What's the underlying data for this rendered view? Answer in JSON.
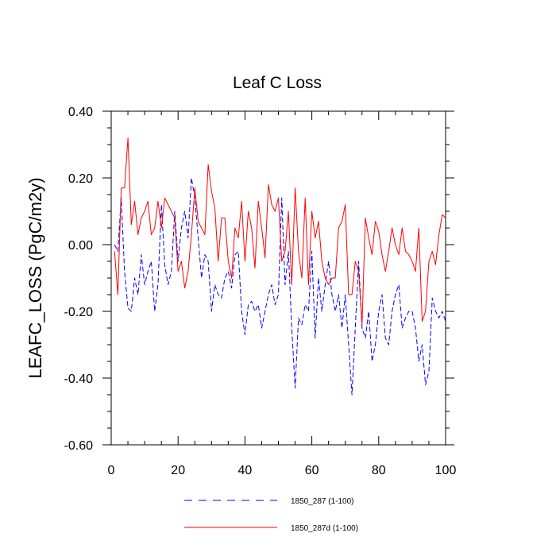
{
  "chart_data": {
    "type": "line",
    "title": "Leaf C Loss",
    "xlabel": "",
    "ylabel": "LEAFC_LOSS  (PgC/m2y)",
    "xlim": [
      0,
      100
    ],
    "ylim": [
      -0.6,
      0.4
    ],
    "x_ticks": [
      0,
      20,
      40,
      60,
      80,
      100
    ],
    "x_tick_labels": [
      "0",
      "20",
      "40",
      "60",
      "80",
      "100"
    ],
    "y_ticks": [
      0.4,
      0.2,
      0.0,
      -0.2,
      -0.4,
      -0.6
    ],
    "y_tick_labels": [
      "0.40",
      "0.20",
      "0.00",
      "-0.20",
      "-0.40",
      "-0.60"
    ],
    "grid": false,
    "legend_position": "bottom-center",
    "series": [
      {
        "name": "1850_287 (1-100)",
        "color": "#0000ff",
        "style": "dashed",
        "x": [
          1,
          2,
          3,
          4,
          5,
          6,
          7,
          8,
          9,
          10,
          11,
          12,
          13,
          14,
          15,
          16,
          17,
          18,
          19,
          20,
          21,
          22,
          23,
          24,
          25,
          26,
          27,
          28,
          29,
          30,
          31,
          32,
          33,
          34,
          35,
          36,
          37,
          38,
          39,
          40,
          41,
          42,
          43,
          44,
          45,
          46,
          47,
          48,
          49,
          50,
          51,
          52,
          53,
          54,
          55,
          56,
          57,
          58,
          59,
          60,
          61,
          62,
          63,
          64,
          65,
          66,
          67,
          68,
          69,
          70,
          71,
          72,
          73,
          74,
          75,
          76,
          77,
          78,
          79,
          80,
          81,
          82,
          83,
          84,
          85,
          86,
          87,
          88,
          89,
          90,
          91,
          92,
          93,
          94,
          95,
          96,
          97,
          98,
          99,
          100
        ],
        "values": [
          0.0,
          -0.02,
          0.14,
          -0.08,
          -0.19,
          -0.2,
          -0.1,
          -0.15,
          -0.03,
          -0.12,
          -0.08,
          -0.05,
          -0.2,
          -0.12,
          0.12,
          -0.06,
          -0.12,
          -0.08,
          0.1,
          -0.05,
          0.05,
          0.1,
          0.02,
          0.2,
          0.14,
          0.02,
          -0.1,
          -0.03,
          -0.05,
          -0.2,
          -0.12,
          -0.15,
          -0.16,
          -0.1,
          -0.08,
          -0.13,
          -0.03,
          -0.02,
          -0.2,
          -0.27,
          -0.18,
          -0.17,
          -0.2,
          -0.18,
          -0.25,
          -0.2,
          -0.15,
          -0.12,
          -0.18,
          -0.15,
          0.14,
          -0.12,
          -0.02,
          -0.25,
          -0.43,
          -0.22,
          -0.24,
          -0.18,
          -0.2,
          -0.02,
          -0.28,
          -0.1,
          -0.2,
          -0.12,
          -0.05,
          -0.15,
          -0.2,
          -0.15,
          -0.25,
          -0.15,
          -0.3,
          -0.45,
          -0.25,
          -0.05,
          -0.25,
          -0.28,
          -0.2,
          -0.35,
          -0.3,
          -0.2,
          -0.15,
          -0.28,
          -0.3,
          -0.2,
          -0.15,
          -0.12,
          -0.25,
          -0.22,
          -0.2,
          -0.2,
          -0.25,
          -0.35,
          -0.3,
          -0.42,
          -0.38,
          -0.16,
          -0.2,
          -0.22,
          -0.2,
          -0.23
        ]
      },
      {
        "name": "1850_287d (1-100)",
        "color": "#ff0000",
        "style": "solid",
        "x": [
          1,
          2,
          3,
          4,
          5,
          6,
          7,
          8,
          9,
          10,
          11,
          12,
          13,
          14,
          15,
          16,
          17,
          18,
          19,
          20,
          21,
          22,
          23,
          24,
          25,
          26,
          27,
          28,
          29,
          30,
          31,
          32,
          33,
          34,
          35,
          36,
          37,
          38,
          39,
          40,
          41,
          42,
          43,
          44,
          45,
          46,
          47,
          48,
          49,
          50,
          51,
          52,
          53,
          54,
          55,
          56,
          57,
          58,
          59,
          60,
          61,
          62,
          63,
          64,
          65,
          66,
          67,
          68,
          69,
          70,
          71,
          72,
          73,
          74,
          75,
          76,
          77,
          78,
          79,
          80,
          81,
          82,
          83,
          84,
          85,
          86,
          87,
          88,
          89,
          90,
          91,
          92,
          93,
          94,
          95,
          96,
          97,
          98,
          99,
          100
        ],
        "values": [
          -0.02,
          -0.15,
          0.17,
          0.17,
          0.32,
          0.06,
          0.13,
          0.03,
          0.08,
          0.1,
          0.13,
          0.03,
          0.05,
          0.13,
          0.05,
          0.14,
          0.12,
          0.1,
          0.08,
          -0.08,
          -0.05,
          -0.13,
          -0.08,
          0.03,
          0.17,
          0.07,
          0.05,
          0.03,
          0.24,
          0.16,
          0.11,
          -0.05,
          0.08,
          0.08,
          -0.05,
          -0.1,
          0.05,
          0.02,
          0.13,
          -0.05,
          0.1,
          0.05,
          -0.07,
          0.13,
          0.05,
          -0.04,
          0.18,
          0.12,
          0.1,
          0.14,
          -0.05,
          -0.02,
          0.1,
          -0.12,
          0.17,
          -0.02,
          -0.1,
          0.14,
          -0.12,
          0.1,
          0.02,
          0.07,
          -0.05,
          -0.1,
          -0.12,
          -0.1,
          -0.1,
          0.05,
          0.07,
          0.12,
          -0.15,
          -0.15,
          -0.05,
          -0.08,
          -0.24,
          0.08,
          0.02,
          -0.03,
          0.07,
          0.04,
          -0.03,
          -0.08,
          -0.02,
          0.05,
          0.0,
          -0.03,
          0.05,
          -0.02,
          -0.03,
          -0.05,
          -0.08,
          0.05,
          -0.23,
          -0.2,
          -0.05,
          -0.02,
          -0.06,
          0.03,
          0.09,
          0.08
        ]
      }
    ]
  }
}
